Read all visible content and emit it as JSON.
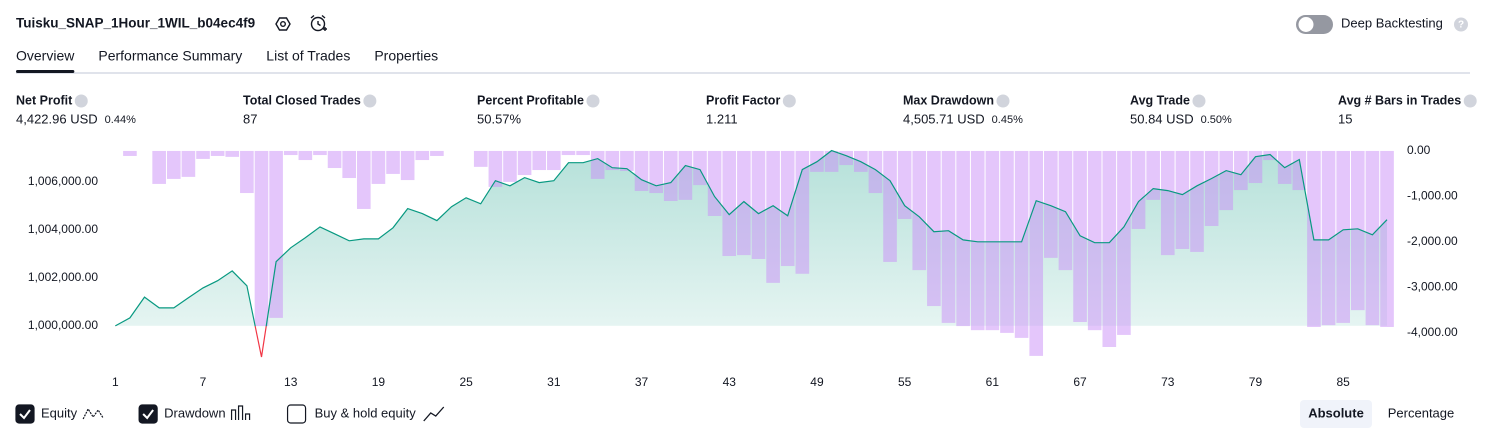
{
  "header": {
    "title": "Tuisku_SNAP_1Hour_1WIL_b04ec4f9",
    "deep_backtesting": "Deep Backtesting"
  },
  "tabs": [
    "Overview",
    "Performance Summary",
    "List of Trades",
    "Properties"
  ],
  "active_tab": 0,
  "metrics": [
    {
      "label": "Net Profit",
      "value": "4,422.96 USD",
      "percent": "0.44%",
      "tone": "positive"
    },
    {
      "label": "Total Closed Trades",
      "value": "87",
      "tone": "neutral"
    },
    {
      "label": "Percent Profitable",
      "value": "50.57%",
      "tone": "positive"
    },
    {
      "label": "Profit Factor",
      "value": "1.211",
      "tone": "positive"
    },
    {
      "label": "Max Drawdown",
      "value": "4,505.71 USD",
      "percent": "0.45%",
      "tone": "negative"
    },
    {
      "label": "Avg Trade",
      "value": "50.84 USD",
      "percent": "0.50%",
      "tone": "positive"
    },
    {
      "label": "Avg # Bars in Trades",
      "value": "15",
      "tone": "neutral"
    }
  ],
  "chart_data": {
    "type": "combo",
    "x": [
      1,
      2,
      3,
      4,
      5,
      6,
      7,
      8,
      9,
      10,
      11,
      12,
      13,
      14,
      15,
      16,
      17,
      18,
      19,
      20,
      21,
      22,
      23,
      24,
      25,
      26,
      27,
      28,
      29,
      30,
      31,
      32,
      33,
      34,
      35,
      36,
      37,
      38,
      39,
      40,
      41,
      42,
      43,
      44,
      45,
      46,
      47,
      48,
      49,
      50,
      51,
      52,
      53,
      54,
      55,
      56,
      57,
      58,
      59,
      60,
      61,
      62,
      63,
      64,
      65,
      66,
      67,
      68,
      69,
      70,
      71,
      72,
      73,
      74,
      75,
      76,
      77,
      78,
      79,
      80,
      81,
      82,
      83,
      84,
      85,
      86,
      87,
      88
    ],
    "xlim": [
      0.5,
      88.75
    ],
    "xticks": [
      1,
      7,
      13,
      19,
      25,
      31,
      37,
      43,
      49,
      55,
      61,
      67,
      73,
      79,
      85
    ],
    "ylim": [
      998500,
      1007400
    ],
    "yticks": [
      {
        "value": 1000000,
        "label": "1,000,000.00"
      },
      {
        "value": 1002000,
        "label": "1,002,000.00"
      },
      {
        "value": 1004000,
        "label": "1,004,000.00"
      },
      {
        "value": 1006000,
        "label": "1,006,000.00"
      }
    ],
    "y2lim": [
      -4640,
      65
    ],
    "y2ticks": [
      {
        "value": 0,
        "label": "0.00"
      },
      {
        "value": -1000,
        "label": "-1,000.00"
      },
      {
        "value": -2000,
        "label": "-2,000.00"
      },
      {
        "value": -3000,
        "label": "-3,000.00"
      },
      {
        "value": -4000,
        "label": "-4,000.00"
      }
    ],
    "series": [
      {
        "name": "Equity",
        "type": "line",
        "axis": "y",
        "color": "#089981",
        "negative_color": "#f23645",
        "visible": true,
        "values": [
          1000000,
          1000333,
          1001200,
          1000750,
          1000750,
          1001170,
          1001580,
          1001880,
          1002290,
          1001670,
          998710,
          1002670,
          1003250,
          1003670,
          1004120,
          1003830,
          1003540,
          1003620,
          1003620,
          1004080,
          1004880,
          1004670,
          1004380,
          1004960,
          1005330,
          1005080,
          1006040,
          1005830,
          1006170,
          1005960,
          1006040,
          1006790,
          1006790,
          1006960,
          1006580,
          1006540,
          1006080,
          1005830,
          1005960,
          1006670,
          1006500,
          1005380,
          1004630,
          1005170,
          1004670,
          1005000,
          1004580,
          1006500,
          1006830,
          1007290,
          1007080,
          1006830,
          1006500,
          1006040,
          1005000,
          1004540,
          1003920,
          1003960,
          1003580,
          1003500,
          1003500,
          1003500,
          1003500,
          1005210,
          1005000,
          1004750,
          1003750,
          1003460,
          1003460,
          1004120,
          1005170,
          1005710,
          1005630,
          1005460,
          1005830,
          1006130,
          1006460,
          1006290,
          1007040,
          1007130,
          1006580,
          1006920,
          1003580,
          1003580,
          1004000,
          1004040,
          1003790,
          1004420
        ]
      },
      {
        "name": "Drawdown",
        "type": "bar",
        "axis": "y2",
        "color": "#c98df8",
        "visible": true,
        "values": [
          0,
          -110,
          0,
          -725,
          -615,
          -570,
          -175,
          -110,
          -130,
          -925,
          -3850,
          -3670,
          -90,
          -200,
          -90,
          -375,
          -595,
          -1275,
          -725,
          -505,
          -640,
          -200,
          -110,
          0,
          0,
          -350,
          -790,
          -680,
          -530,
          -420,
          -420,
          -90,
          -90,
          -615,
          -420,
          -440,
          -880,
          -925,
          -1100,
          -1075,
          -750,
          -1430,
          -2310,
          -2290,
          -2375,
          -2900,
          -2530,
          -2700,
          -460,
          -460,
          -310,
          -460,
          -925,
          -2440,
          -1495,
          -2620,
          -3410,
          -3780,
          -3850,
          -3940,
          -3940,
          -4000,
          -4110,
          -4505.71,
          -2350,
          -2620,
          -3760,
          -3940,
          -4310,
          -4045,
          -1715,
          -1075,
          -2290,
          -2155,
          -2220,
          -1650,
          -1300,
          -860,
          -705,
          -200,
          -725,
          -860,
          -3870,
          -3830,
          -3780,
          -3500,
          -3830,
          -3870
        ]
      }
    ],
    "buy_hold": "Buy & hold equity",
    "buy_hold_visible": false,
    "scale_buttons": [
      "Absolute",
      "Percentage"
    ],
    "active_scale": 0
  }
}
